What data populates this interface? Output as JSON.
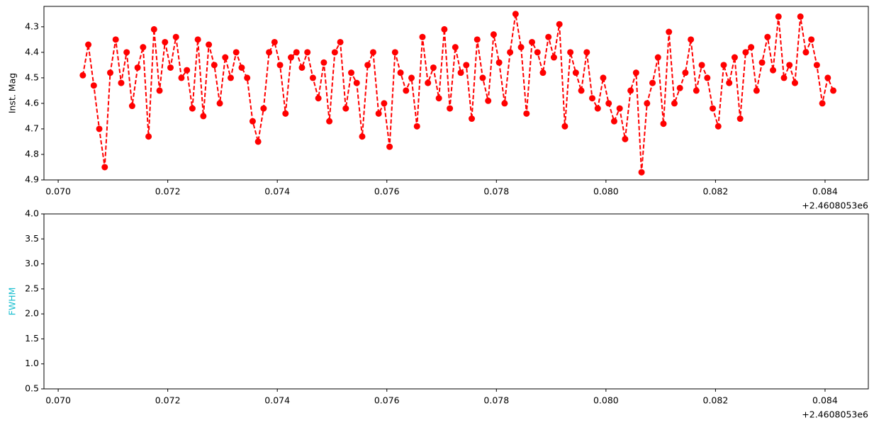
{
  "chart_data": [
    {
      "type": "line",
      "ylabel": "Inst. Mag",
      "x_offset_label": "+2.4608053e6",
      "color": "#ff0000",
      "marker": "circle",
      "linestyle": "dashed",
      "x": [
        0.07045,
        0.07055,
        0.07065,
        0.07075,
        0.07085,
        0.07095,
        0.07105,
        0.07115,
        0.07125,
        0.07135,
        0.07145,
        0.07155,
        0.07165,
        0.07175,
        0.07185,
        0.07195,
        0.07205,
        0.07215,
        0.07225,
        0.07235,
        0.07245,
        0.07255,
        0.07265,
        0.07275,
        0.07285,
        0.07295,
        0.07305,
        0.07315,
        0.07325,
        0.07335,
        0.07345,
        0.07355,
        0.07365,
        0.07375,
        0.07385,
        0.07395,
        0.07405,
        0.07415,
        0.07425,
        0.07435,
        0.07445,
        0.07455,
        0.07465,
        0.07475,
        0.07485,
        0.07495,
        0.07505,
        0.07515,
        0.07525,
        0.07535,
        0.07545,
        0.07555,
        0.07565,
        0.07575,
        0.07585,
        0.07595,
        0.07605,
        0.07615,
        0.07625,
        0.07635,
        0.07645,
        0.07655,
        0.07665,
        0.07675,
        0.07685,
        0.07695,
        0.07705,
        0.07715,
        0.07725,
        0.07735,
        0.07745,
        0.07755,
        0.07765,
        0.07775,
        0.07785,
        0.07795,
        0.07805,
        0.07815,
        0.07825,
        0.07835,
        0.07845,
        0.07855,
        0.07865,
        0.07875,
        0.07885,
        0.07895,
        0.07905,
        0.07915,
        0.07925,
        0.07935,
        0.07945,
        0.07955,
        0.07965,
        0.07975,
        0.07985,
        0.07995,
        0.08005,
        0.08015,
        0.08025,
        0.08035,
        0.08045,
        0.08055,
        0.08065,
        0.08075,
        0.08085,
        0.08095,
        0.08105,
        0.08115,
        0.08125,
        0.08135,
        0.08145,
        0.08155,
        0.08165,
        0.08175,
        0.08185,
        0.08195,
        0.08205,
        0.08215,
        0.08225,
        0.08235,
        0.08245,
        0.08255,
        0.08265,
        0.08275,
        0.08285,
        0.08295,
        0.08305,
        0.08315,
        0.08325,
        0.08335,
        0.08345,
        0.08355,
        0.08365,
        0.08375,
        0.08385,
        0.08395,
        0.08405,
        0.08415
      ],
      "values": [
        4.49,
        4.37,
        4.53,
        4.7,
        4.85,
        4.48,
        4.35,
        4.52,
        4.4,
        4.61,
        4.46,
        4.38,
        4.73,
        4.31,
        4.55,
        4.36,
        4.46,
        4.34,
        4.5,
        4.47,
        4.62,
        4.35,
        4.65,
        4.37,
        4.45,
        4.6,
        4.42,
        4.5,
        4.4,
        4.46,
        4.5,
        4.67,
        4.75,
        4.62,
        4.4,
        4.36,
        4.45,
        4.64,
        4.42,
        4.4,
        4.46,
        4.4,
        4.5,
        4.58,
        4.44,
        4.67,
        4.4,
        4.36,
        4.62,
        4.48,
        4.52,
        4.73,
        4.45,
        4.4,
        4.64,
        4.6,
        4.77,
        4.4,
        4.48,
        4.55,
        4.5,
        4.69,
        4.34,
        4.52,
        4.46,
        4.58,
        4.31,
        4.62,
        4.38,
        4.48,
        4.45,
        4.66,
        4.35,
        4.5,
        4.59,
        4.33,
        4.44,
        4.6,
        4.4,
        4.25,
        4.38,
        4.64,
        4.36,
        4.4,
        4.48,
        4.34,
        4.42,
        4.29,
        4.69,
        4.4,
        4.48,
        4.55,
        4.4,
        4.58,
        4.62,
        4.5,
        4.6,
        4.67,
        4.62,
        4.74,
        4.55,
        4.48,
        4.87,
        4.6,
        4.52,
        4.42,
        4.68,
        4.32,
        4.6,
        4.54,
        4.48,
        4.35,
        4.55,
        4.45,
        4.5,
        4.62,
        4.69,
        4.45,
        4.52,
        4.42,
        4.66,
        4.4,
        4.38,
        4.55,
        4.44,
        4.34,
        4.47,
        4.26,
        4.5,
        4.45,
        4.52,
        4.26,
        4.4,
        4.35,
        4.45,
        4.6,
        4.5,
        4.55
      ],
      "xlim": [
        0.06974,
        0.08479
      ],
      "xticks": [
        {
          "value": 0.07,
          "label": "0.070"
        },
        {
          "value": 0.072,
          "label": "0.072"
        },
        {
          "value": 0.074,
          "label": "0.074"
        },
        {
          "value": 0.076,
          "label": "0.076"
        },
        {
          "value": 0.078,
          "label": "0.078"
        },
        {
          "value": 0.08,
          "label": "0.080"
        },
        {
          "value": 0.082,
          "label": "0.082"
        },
        {
          "value": 0.084,
          "label": "0.084"
        }
      ],
      "ylim": [
        4.9,
        4.22
      ],
      "yticks": [
        4.3,
        4.4,
        4.5,
        4.6,
        4.7,
        4.8,
        4.9
      ]
    },
    {
      "type": "line",
      "ylabel": "FWHM",
      "ylabel_color": "#17becf",
      "x_offset_label": "+2.4608053e6",
      "x": [],
      "values": [],
      "xlim": [
        0.06974,
        0.08479
      ],
      "xticks": [
        {
          "value": 0.07,
          "label": "0.070"
        },
        {
          "value": 0.072,
          "label": "0.072"
        },
        {
          "value": 0.074,
          "label": "0.074"
        },
        {
          "value": 0.076,
          "label": "0.076"
        },
        {
          "value": 0.078,
          "label": "0.078"
        },
        {
          "value": 0.08,
          "label": "0.080"
        },
        {
          "value": 0.082,
          "label": "0.082"
        },
        {
          "value": 0.084,
          "label": "0.084"
        }
      ],
      "ylim": [
        0.5,
        4.0
      ],
      "yticks": [
        0.5,
        {
          "value": 1.0,
          "label": "1.0"
        },
        1.5,
        {
          "value": 2.0,
          "label": "2.0"
        },
        2.5,
        {
          "value": 3.0,
          "label": "3.0"
        },
        3.5,
        {
          "value": 4.0,
          "label": "4.0"
        }
      ]
    }
  ]
}
